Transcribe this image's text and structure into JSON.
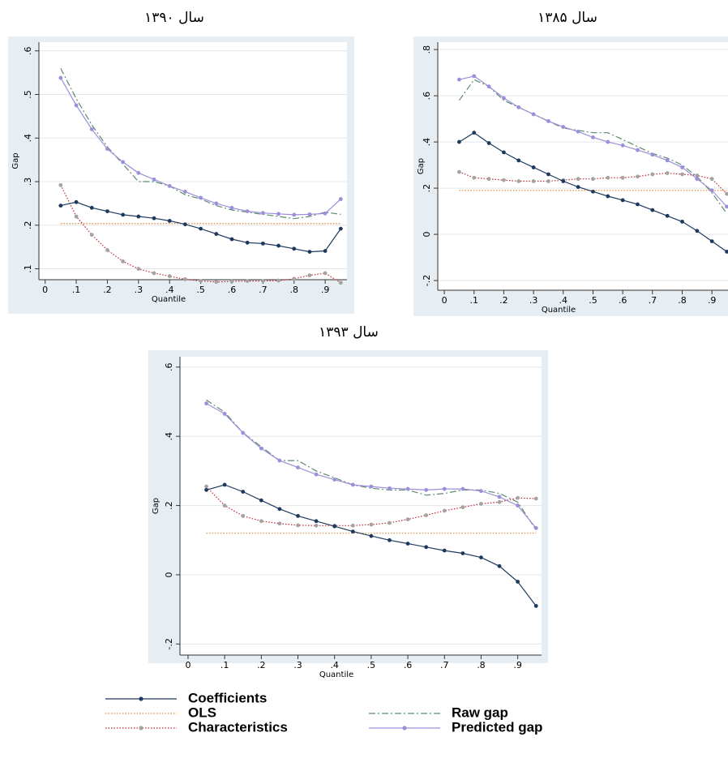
{
  "chart_data": [
    {
      "type": "line",
      "title": "سال ۱۳۹۰",
      "xlabel": "Quantile",
      "ylabel": "Gap",
      "x": [
        0.05,
        0.1,
        0.15,
        0.2,
        0.25,
        0.3,
        0.35,
        0.4,
        0.45,
        0.5,
        0.55,
        0.6,
        0.65,
        0.7,
        0.75,
        0.8,
        0.85,
        0.9,
        0.95
      ],
      "xlim": [
        -0.02,
        0.97
      ],
      "ylim": [
        0.075,
        0.62
      ],
      "xticks": [
        0,
        {
          "value": 0.1,
          "label": ".1"
        },
        {
          "value": 0.2,
          "label": ".2"
        },
        {
          "value": 0.3,
          "label": ".3"
        },
        {
          "value": 0.4,
          "label": ".4"
        },
        {
          "value": 0.5,
          "label": ".5"
        },
        {
          "value": 0.6,
          "label": ".6"
        },
        {
          "value": 0.7,
          "label": ".7"
        },
        {
          "value": 0.8,
          "label": ".8"
        },
        {
          "value": 0.9,
          "label": ".9"
        }
      ],
      "yticks": [
        {
          "value": 0.1,
          "label": ".1"
        },
        {
          "value": 0.2,
          "label": ".2"
        },
        {
          "value": 0.3,
          "label": ".3"
        },
        {
          "value": 0.4,
          "label": ".4"
        },
        {
          "value": 0.5,
          "label": ".5"
        },
        {
          "value": 0.6,
          "label": ".6"
        }
      ],
      "grid": true,
      "series": [
        {
          "values": [
            0.245,
            0.253,
            0.24,
            0.232,
            0.224,
            0.22,
            0.216,
            0.21,
            0.202,
            0.192,
            0.18,
            0.168,
            0.16,
            0.158,
            0.153,
            0.146,
            0.139,
            0.141,
            0.192
          ]
        },
        {
          "values": [
            0.204,
            0.204,
            0.204,
            0.204,
            0.204,
            0.204,
            0.204,
            0.204,
            0.204,
            0.204,
            0.204,
            0.204,
            0.204,
            0.204,
            0.204,
            0.204,
            0.204,
            0.204,
            0.204
          ]
        },
        {
          "values": [
            0.292,
            0.22,
            0.178,
            0.143,
            0.117,
            0.1,
            0.09,
            0.083,
            0.076,
            0.072,
            0.07,
            0.071,
            0.072,
            0.072,
            0.073,
            0.077,
            0.085,
            0.09,
            0.068
          ]
        },
        {
          "values": [
            0.56,
            0.49,
            0.43,
            0.38,
            0.34,
            0.3,
            0.3,
            0.29,
            0.27,
            0.26,
            0.245,
            0.235,
            0.23,
            0.225,
            0.22,
            0.215,
            0.22,
            0.23,
            0.225
          ]
        },
        {
          "values": [
            0.538,
            0.475,
            0.42,
            0.375,
            0.345,
            0.32,
            0.305,
            0.29,
            0.277,
            0.263,
            0.25,
            0.24,
            0.232,
            0.228,
            0.226,
            0.224,
            0.225,
            0.227,
            0.26
          ]
        }
      ]
    },
    {
      "type": "line",
      "title": "سال ۱۳۸۵",
      "xlabel": "Quantile",
      "ylabel": "Gap",
      "x": [
        0.05,
        0.1,
        0.15,
        0.2,
        0.25,
        0.3,
        0.35,
        0.4,
        0.45,
        0.5,
        0.55,
        0.6,
        0.65,
        0.7,
        0.75,
        0.8,
        0.85,
        0.9,
        0.95
      ],
      "xlim": [
        -0.022,
        0.954
      ],
      "ylim": [
        -0.242,
        0.832
      ],
      "xticks": [
        0,
        {
          "value": 0.1,
          "label": ".1"
        },
        {
          "value": 0.2,
          "label": ".2"
        },
        {
          "value": 0.3,
          "label": ".3"
        },
        {
          "value": 0.4,
          "label": ".4"
        },
        {
          "value": 0.5,
          "label": ".5"
        },
        {
          "value": 0.6,
          "label": ".6"
        },
        {
          "value": 0.7,
          "label": ".7"
        },
        {
          "value": 0.8,
          "label": ".8"
        },
        {
          "value": 0.9,
          "label": ".9"
        }
      ],
      "yticks": [
        {
          "value": -0.2,
          "label": "-.2"
        },
        0,
        {
          "value": 0.2,
          "label": ".2"
        },
        {
          "value": 0.4,
          "label": ".4"
        },
        {
          "value": 0.6,
          "label": ".6"
        },
        {
          "value": 0.8,
          "label": ".8"
        }
      ],
      "grid": true,
      "series": [
        {
          "values": [
            0.4,
            0.44,
            0.395,
            0.355,
            0.32,
            0.29,
            0.26,
            0.23,
            0.205,
            0.185,
            0.165,
            0.148,
            0.13,
            0.105,
            0.08,
            0.055,
            0.015,
            -0.03,
            -0.075
          ]
        },
        {
          "values": [
            0.19,
            0.19,
            0.19,
            0.19,
            0.19,
            0.19,
            0.19,
            0.19,
            0.19,
            0.19,
            0.19,
            0.19,
            0.19,
            0.19,
            0.19,
            0.19,
            0.19,
            0.19,
            0.19
          ]
        },
        {
          "values": [
            0.27,
            0.245,
            0.24,
            0.235,
            0.23,
            0.23,
            0.23,
            0.235,
            0.24,
            0.24,
            0.245,
            0.245,
            0.25,
            0.26,
            0.265,
            0.26,
            0.255,
            0.24,
            0.175
          ]
        },
        {
          "values": [
            0.58,
            0.67,
            0.64,
            0.58,
            0.55,
            0.52,
            0.49,
            0.46,
            0.45,
            0.44,
            0.44,
            0.41,
            0.38,
            0.35,
            0.33,
            0.3,
            0.25,
            0.18,
            0.09
          ]
        },
        {
          "values": [
            0.67,
            0.685,
            0.64,
            0.59,
            0.55,
            0.52,
            0.49,
            0.465,
            0.445,
            0.42,
            0.4,
            0.385,
            0.365,
            0.345,
            0.32,
            0.29,
            0.24,
            0.19,
            0.12
          ]
        }
      ]
    },
    {
      "type": "line",
      "title": "سال ۱۳۹۳",
      "xlabel": "Quantile",
      "ylabel": "Gap",
      "x": [
        0.05,
        0.1,
        0.15,
        0.2,
        0.25,
        0.3,
        0.35,
        0.4,
        0.45,
        0.5,
        0.55,
        0.6,
        0.65,
        0.7,
        0.75,
        0.8,
        0.85,
        0.9,
        0.95
      ],
      "xlim": [
        -0.022,
        0.965
      ],
      "ylim": [
        -0.232,
        0.63
      ],
      "xticks": [
        0,
        {
          "value": 0.1,
          "label": ".1"
        },
        {
          "value": 0.2,
          "label": ".2"
        },
        {
          "value": 0.3,
          "label": ".3"
        },
        {
          "value": 0.4,
          "label": ".4"
        },
        {
          "value": 0.5,
          "label": ".5"
        },
        {
          "value": 0.6,
          "label": ".6"
        },
        {
          "value": 0.7,
          "label": ".7"
        },
        {
          "value": 0.8,
          "label": ".8"
        },
        {
          "value": 0.9,
          "label": ".9"
        }
      ],
      "yticks": [
        {
          "value": -0.2,
          "label": "-.2"
        },
        0,
        {
          "value": 0.2,
          "label": ".2"
        },
        {
          "value": 0.4,
          "label": ".4"
        },
        {
          "value": 0.6,
          "label": ".6"
        }
      ],
      "grid": true,
      "series": [
        {
          "values": [
            0.245,
            0.26,
            0.24,
            0.215,
            0.19,
            0.17,
            0.155,
            0.14,
            0.125,
            0.112,
            0.1,
            0.09,
            0.08,
            0.07,
            0.062,
            0.05,
            0.025,
            -0.02,
            -0.09
          ]
        },
        {
          "values": [
            0.12,
            0.12,
            0.12,
            0.12,
            0.12,
            0.12,
            0.12,
            0.12,
            0.12,
            0.12,
            0.12,
            0.12,
            0.12,
            0.12,
            0.12,
            0.12,
            0.12,
            0.12,
            0.12
          ]
        },
        {
          "values": [
            0.255,
            0.2,
            0.17,
            0.155,
            0.148,
            0.143,
            0.142,
            0.142,
            0.142,
            0.145,
            0.15,
            0.16,
            0.172,
            0.185,
            0.195,
            0.205,
            0.21,
            0.222,
            0.22
          ]
        },
        {
          "values": [
            0.505,
            0.47,
            0.41,
            0.37,
            0.33,
            0.33,
            0.3,
            0.28,
            0.26,
            0.25,
            0.245,
            0.245,
            0.23,
            0.235,
            0.245,
            0.245,
            0.235,
            0.21,
            0.13
          ]
        },
        {
          "values": [
            0.495,
            0.465,
            0.41,
            0.365,
            0.33,
            0.31,
            0.29,
            0.275,
            0.26,
            0.255,
            0.25,
            0.248,
            0.245,
            0.248,
            0.248,
            0.242,
            0.225,
            0.2,
            0.135
          ]
        }
      ]
    }
  ],
  "legend": [
    {
      "name": "Coefficients",
      "color": "#1d3a5e",
      "style": "solid",
      "marker": "#1d3a5e"
    },
    {
      "name": "OLS",
      "color": "#e08a3c",
      "style": "dotted",
      "marker": null
    },
    {
      "name": "Characteristics",
      "color": "#c4262e",
      "style": "dotted",
      "marker": "#a3a3a3"
    },
    {
      "name": "Raw gap",
      "color": "#5e8a70",
      "style": "dashdot",
      "marker": null
    },
    {
      "name": "Predicted gap",
      "color": "#9b8fd9",
      "style": "solid",
      "marker": "#9b8fd9"
    }
  ]
}
